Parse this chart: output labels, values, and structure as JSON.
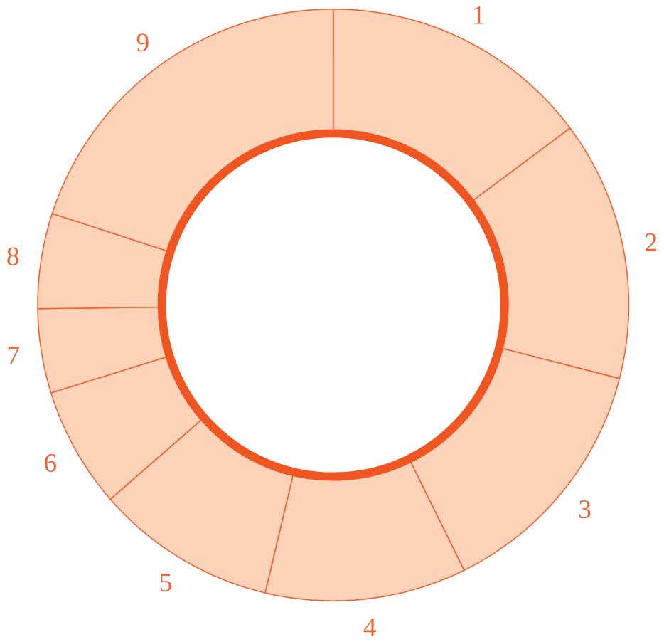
{
  "chart_data": {
    "type": "donut",
    "categories": [
      "1",
      "2",
      "3",
      "4",
      "5",
      "6",
      "7",
      "8",
      "9"
    ],
    "values": [
      14.8,
      14.2,
      13.7,
      11.0,
      9.9,
      6.6,
      4.6,
      5.2,
      20.0
    ],
    "colors": [
      "#fcd3b8",
      "#fcd3b8",
      "#fcd3b8",
      "#fcd3b8",
      "#fcd3b8",
      "#fcd3b8",
      "#fcd3b8",
      "#fcd3b8",
      "#fcd3b8"
    ]
  }
}
